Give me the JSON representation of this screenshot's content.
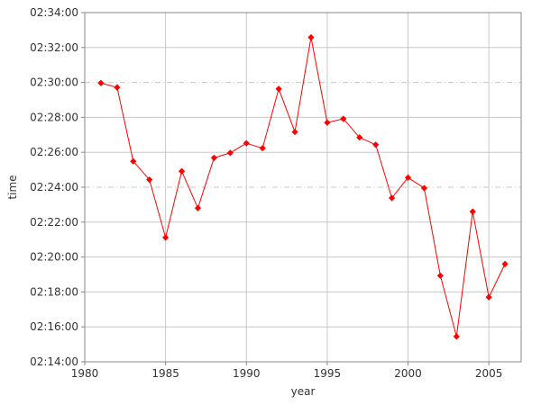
{
  "chart_data": {
    "type": "line",
    "title": "",
    "xlabel": "year",
    "ylabel": "time",
    "xlim": [
      1980,
      2007
    ],
    "ylim": [
      "02:14:00",
      "02:34:00"
    ],
    "x_ticks": [
      "1980",
      "1985",
      "1990",
      "1995",
      "2000",
      "2005"
    ],
    "y_ticks": [
      "02:14:00",
      "02:16:00",
      "02:18:00",
      "02:20:00",
      "02:22:00",
      "02:24:00",
      "02:26:00",
      "02:28:00",
      "02:30:00",
      "02:32:00",
      "02:34:00"
    ],
    "grid": true,
    "legend": "none",
    "series": [
      {
        "color": "#ff0000",
        "marker": "diamond",
        "x": [
          1981,
          1982,
          1983,
          1984,
          1985,
          1986,
          1987,
          1988,
          1989,
          1990,
          1991,
          1992,
          1993,
          1994,
          1995,
          1996,
          1997,
          1998,
          1999,
          2000,
          2001,
          2002,
          2003,
          2004,
          2005,
          2006
        ],
        "y": [
          "02:29:58",
          "02:29:43",
          "02:25:29",
          "02:24:26",
          "02:21:07",
          "02:24:55",
          "02:22:48",
          "02:25:41",
          "02:25:58",
          "02:26:31",
          "02:26:14",
          "02:29:38",
          "02:27:10",
          "02:32:35",
          "02:27:42",
          "02:27:55",
          "02:26:51",
          "02:26:26",
          "02:23:23",
          "02:24:33",
          "02:23:57",
          "02:18:56",
          "02:15:27",
          "02:22:36",
          "02:17:42",
          "02:19:36"
        ]
      }
    ]
  }
}
